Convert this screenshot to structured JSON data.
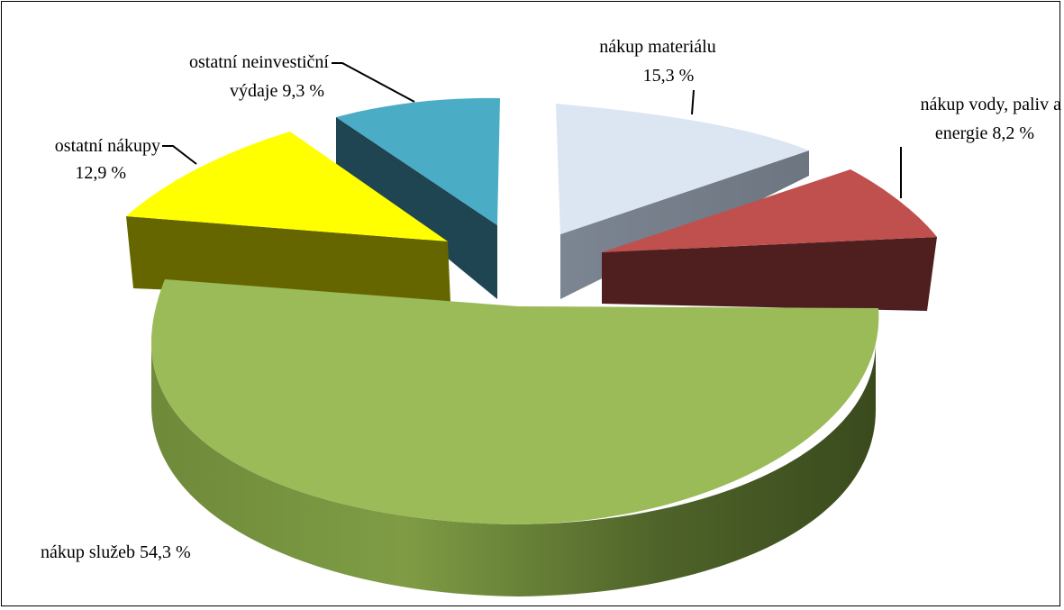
{
  "chart_data": {
    "type": "pie",
    "title": "",
    "series": [
      {
        "values": [
          15.3,
          8.2,
          54.3,
          12.9,
          9.3
        ],
        "labels": [
          "nákup materiálu",
          "nákup vody, paliv a energie",
          "nákup služeb",
          "ostatní nákupy",
          "ostatní neinvestiční výdaje"
        ],
        "value_labels": [
          "15,3 %",
          "8,2 %",
          "54,3 %",
          "12,9 %",
          "9,3 %"
        ],
        "colors": [
          "#dce6f2",
          "#c0504d",
          "#9bbb59",
          "#ffff00",
          "#4bacc6"
        ]
      }
    ],
    "data_labels": {
      "material_line1": "nákup materiálu",
      "material_line2": "15,3 %",
      "voda_line1": "nákup vody, paliv a",
      "voda_line2": "energie  8,2 %",
      "sluzby": "nákup služeb 54,3 %",
      "ostatni_nakupy_line1": "ostatní nákupy",
      "ostatni_nakupy_line2": "12,9 %",
      "neinvesticni_line1": "ostatní neinvestiční",
      "neinvesticni_line2": "výdaje  9,3 %"
    },
    "style": "3d-exploded",
    "legend": "none"
  }
}
